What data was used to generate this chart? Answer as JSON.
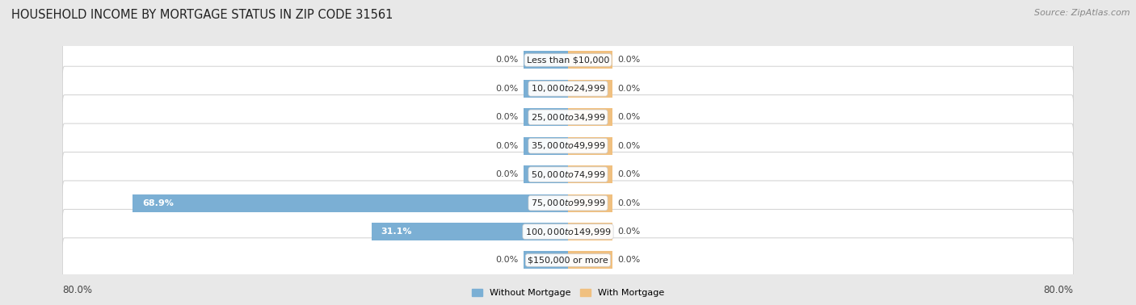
{
  "title": "HOUSEHOLD INCOME BY MORTGAGE STATUS IN ZIP CODE 31561",
  "source": "Source: ZipAtlas.com",
  "categories": [
    "Less than $10,000",
    "$10,000 to $24,999",
    "$25,000 to $34,999",
    "$35,000 to $49,999",
    "$50,000 to $74,999",
    "$75,000 to $99,999",
    "$100,000 to $149,999",
    "$150,000 or more"
  ],
  "without_mortgage": [
    0.0,
    0.0,
    0.0,
    0.0,
    0.0,
    68.9,
    31.1,
    0.0
  ],
  "with_mortgage": [
    0.0,
    0.0,
    0.0,
    0.0,
    0.0,
    0.0,
    0.0,
    0.0
  ],
  "color_without": "#7bafd4",
  "color_with": "#f0c080",
  "axis_left_label": "80.0%",
  "axis_right_label": "80.0%",
  "background_color": "#e8e8e8",
  "row_bg_color": "#f5f5f5",
  "max_val": 80.0,
  "stub_size": 7.0,
  "fig_width": 14.06,
  "fig_height": 3.78,
  "title_fontsize": 10.5,
  "label_fontsize": 8.0,
  "cat_fontsize": 8.0,
  "source_fontsize": 8.0
}
